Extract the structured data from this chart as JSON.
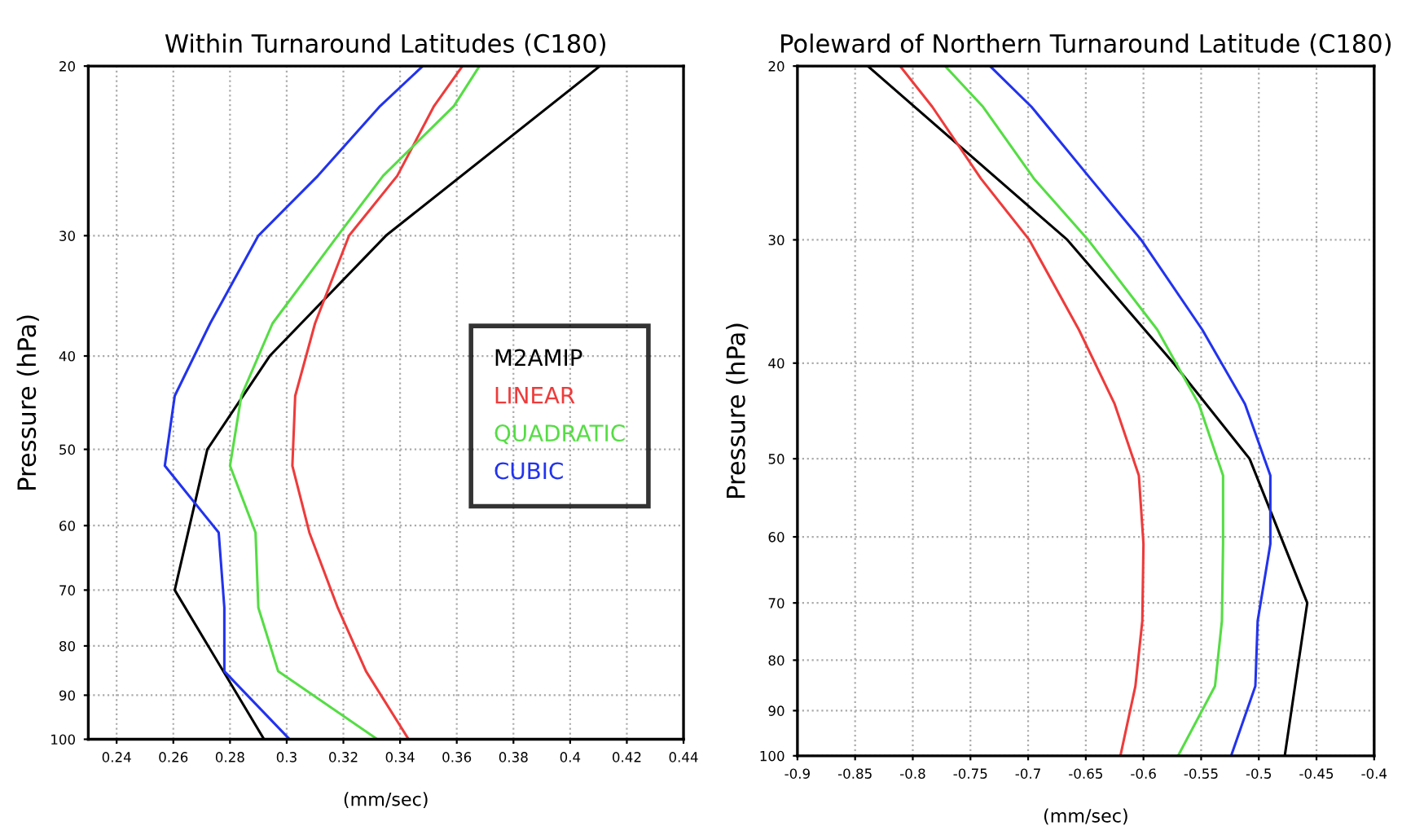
{
  "chart_data": [
    {
      "type": "line",
      "title": "Within Turnaround Latitudes (C180)",
      "xlabel": "(mm/sec)",
      "ylabel": "Pressure (hPa)",
      "log": "y",
      "grid": true,
      "legend": "right",
      "line_style": "solid",
      "xlim": [
        0.23,
        0.44
      ],
      "xticks": [
        0.24,
        0.26,
        0.28,
        0.3,
        0.32,
        0.34,
        0.36,
        0.38,
        0.4,
        0.42,
        0.44
      ],
      "ylim": [
        100,
        20
      ],
      "yticks": [
        20,
        30,
        40,
        50,
        60,
        70,
        80,
        90,
        100
      ],
      "series": [
        {
          "name": "M2AMIP",
          "color": "#000000",
          "x": [
            0.4105,
            0.335,
            0.294,
            0.272,
            0.2605,
            0.292
          ],
          "values": [
            20,
            30,
            40,
            50,
            70,
            100
          ]
        },
        {
          "name": "LINEAR",
          "color": "#ee3b3b",
          "x": [
            0.362,
            0.352,
            0.339,
            0.322,
            0.31,
            0.303,
            0.302,
            0.308,
            0.318,
            0.328,
            0.343
          ],
          "values": [
            20,
            22,
            26,
            30,
            37,
            44,
            52,
            61,
            73,
            85,
            100
          ]
        },
        {
          "name": "QUADRATIC",
          "color": "#55dd44",
          "x": [
            0.368,
            0.359,
            0.334,
            0.318,
            0.295,
            0.284,
            0.28,
            0.289,
            0.29,
            0.297,
            0.332
          ],
          "values": [
            20,
            22,
            26,
            30,
            37,
            44,
            52,
            61,
            73,
            85,
            100
          ]
        },
        {
          "name": "CUBIC",
          "color": "#2233ee",
          "x": [
            0.348,
            0.333,
            0.311,
            0.29,
            0.273,
            0.2605,
            0.257,
            0.276,
            0.278,
            0.278,
            0.301
          ],
          "values": [
            20,
            22,
            26,
            30,
            37,
            44,
            52,
            61,
            73,
            85,
            100
          ]
        }
      ]
    },
    {
      "type": "line",
      "title": "Poleward of Northern Turnaround Latitude (C180)",
      "xlabel": "(mm/sec)",
      "ylabel": "Pressure (hPa)",
      "log": "y",
      "grid": true,
      "line_style": "solid",
      "xlim": [
        -0.9,
        -0.4
      ],
      "xticks": [
        -0.9,
        -0.85,
        -0.8,
        -0.75,
        -0.7,
        -0.65,
        -0.6,
        -0.55,
        -0.5,
        -0.45,
        -0.4
      ],
      "ylim": [
        100,
        20
      ],
      "yticks": [
        20,
        30,
        40,
        50,
        60,
        70,
        80,
        90,
        100
      ],
      "series": [
        {
          "color": "#000000",
          "x": [
            -0.839,
            -0.666,
            -0.574,
            -0.508,
            -0.458,
            -0.4775
          ],
          "values": [
            20,
            30,
            40,
            50,
            70,
            100
          ]
        },
        {
          "color": "#ee3b3b",
          "x": [
            -0.811,
            -0.783,
            -0.741,
            -0.699,
            -0.656,
            -0.625,
            -0.604,
            -0.6,
            -0.601,
            -0.607,
            -0.62
          ],
          "values": [
            20,
            22,
            26,
            30,
            37,
            44,
            52,
            61,
            73,
            85,
            100
          ]
        },
        {
          "color": "#55dd44",
          "x": [
            -0.772,
            -0.739,
            -0.695,
            -0.648,
            -0.588,
            -0.552,
            -0.531,
            -0.531,
            -0.532,
            -0.538,
            -0.57
          ],
          "values": [
            20,
            22,
            26,
            30,
            37,
            44,
            52,
            61,
            73,
            85,
            100
          ]
        },
        {
          "color": "#2233ee",
          "x": [
            -0.733,
            -0.697,
            -0.646,
            -0.602,
            -0.549,
            -0.512,
            -0.49,
            -0.49,
            -0.501,
            -0.503,
            -0.524
          ],
          "values": [
            20,
            22,
            26,
            30,
            37,
            44,
            52,
            61,
            73,
            85,
            100
          ]
        }
      ]
    }
  ]
}
